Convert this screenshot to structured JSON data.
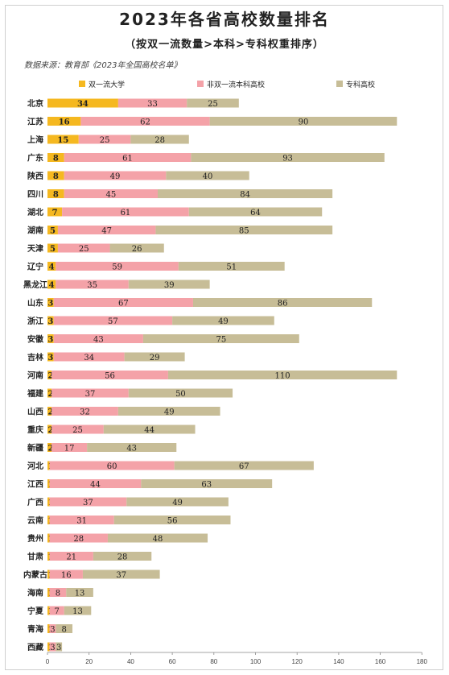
{
  "title": "2023年各省高校数量排名",
  "subtitle": "（按双一流数量>本科>专科权重排序）",
  "source": "数据来源：教育部《2023年全国高校名单》",
  "chart_data": {
    "type": "bar",
    "orientation": "horizontal",
    "stacked": true,
    "categories": [
      "北京",
      "江苏",
      "上海",
      "广东",
      "陕西",
      "四川",
      "湖北",
      "湖南",
      "天津",
      "辽宁",
      "黑龙江",
      "山东",
      "浙江",
      "安徽",
      "吉林",
      "河南",
      "福建",
      "山西",
      "重庆",
      "新疆",
      "河北",
      "江西",
      "广西",
      "云南",
      "贵州",
      "甘肃",
      "内蒙古",
      "海南",
      "宁夏",
      "青海",
      "西藏"
    ],
    "series": [
      {
        "name": "双一流大学",
        "color": "#f5b820",
        "values": [
          34,
          16,
          15,
          8,
          8,
          8,
          7,
          5,
          5,
          4,
          4,
          3,
          3,
          3,
          3,
          2,
          2,
          2,
          2,
          2,
          1,
          1,
          1,
          1,
          1,
          1,
          1,
          1,
          1,
          1,
          1
        ]
      },
      {
        "name": "非双一流本科高校",
        "color": "#f4a2a8",
        "values": [
          33,
          62,
          25,
          61,
          49,
          45,
          61,
          47,
          25,
          59,
          35,
          67,
          57,
          43,
          34,
          56,
          37,
          32,
          25,
          17,
          60,
          44,
          37,
          31,
          28,
          21,
          16,
          8,
          7,
          3,
          3
        ]
      },
      {
        "name": "专科高校",
        "color": "#c7bd97",
        "values": [
          25,
          90,
          28,
          93,
          40,
          84,
          64,
          85,
          26,
          51,
          39,
          86,
          49,
          75,
          29,
          110,
          50,
          49,
          44,
          43,
          67,
          63,
          49,
          56,
          48,
          28,
          37,
          13,
          13,
          8,
          3
        ]
      }
    ],
    "xlim": [
      0,
      180
    ],
    "xticks": [
      "0",
      "20",
      "40",
      "60",
      "80",
      "100",
      "120",
      "140",
      "160",
      "180"
    ],
    "legend_position": "top",
    "grid": false
  }
}
